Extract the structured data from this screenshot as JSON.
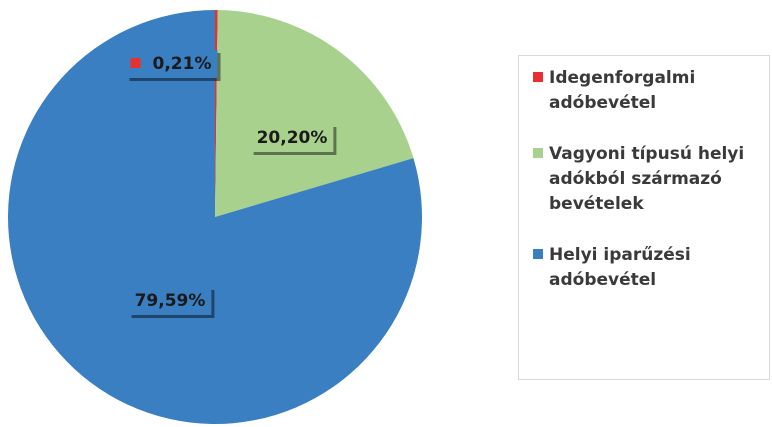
{
  "chart_data": {
    "type": "pie",
    "categories": [
      "Idegenforgalmi adóbevétel",
      "Vagyoni típusú helyi adókból származó bevételek",
      "Helyi iparűzési adóbevétel"
    ],
    "values": [
      0.21,
      20.2,
      79.59
    ],
    "value_labels": [
      "0,21%",
      "20,20%",
      "79,59%"
    ],
    "colors": [
      "#e8312f",
      "#a9d18e",
      "#3a7fc1"
    ],
    "legend": "right"
  }
}
